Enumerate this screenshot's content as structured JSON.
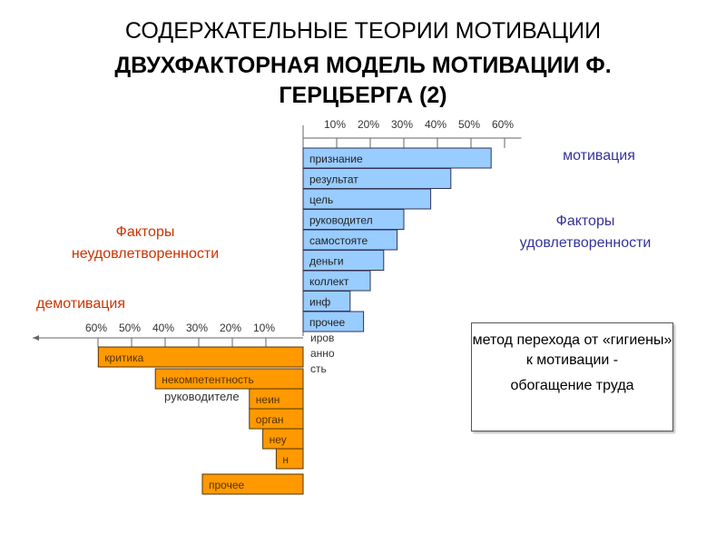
{
  "title_line1": "СОДЕРЖАТЕЛЬНЫЕ ТЕОРИИ МОТИВАЦИИ",
  "title_line2": "ДВУХФАКТОРНАЯ МОДЕЛЬ МОТИВАЦИИ Ф. ГЕРЦБЕРГА (2)",
  "motivation_label": "мотивация",
  "satisfaction_label": "Факторы удовлетворенности",
  "dissatisfaction_label": "Факторы неудовлетворенности",
  "demotivation_label": "демотивация",
  "box": {
    "line1": "метод перехода от «гигиены» к мотивации -",
    "line2": "обогащение труда"
  },
  "overflow_text": {
    "rukovoditele": "руководителе",
    "informirovannost": "иров анно сть"
  },
  "colors": {
    "motivators": "#99ccff",
    "hygiene": "#ff9900",
    "blue_text": "#333399",
    "red_text": "#cc3300"
  },
  "chart_data": [
    {
      "type": "bar",
      "orientation": "horizontal",
      "direction": "right",
      "ticks": [
        "10%",
        "20%",
        "30%",
        "40%",
        "50%",
        "60%"
      ],
      "xlim": [
        0,
        60
      ],
      "categories": [
        "признание",
        "результат",
        "цель",
        "руководител",
        "самостояте",
        "деньги",
        "коллект",
        "инф",
        "прочее"
      ],
      "values": [
        56,
        44,
        38,
        30,
        28,
        24,
        20,
        14,
        18
      ]
    },
    {
      "type": "bar",
      "orientation": "horizontal",
      "direction": "left",
      "ticks": [
        "60%",
        "50%",
        "40%",
        "30%",
        "20%",
        "10%"
      ],
      "xlim": [
        0,
        60
      ],
      "categories": [
        "критика",
        "некомпетентность",
        "неин",
        "орган",
        "неу",
        "н",
        "прочее"
      ],
      "values": [
        61,
        44,
        16,
        16,
        12,
        8,
        30
      ]
    }
  ]
}
